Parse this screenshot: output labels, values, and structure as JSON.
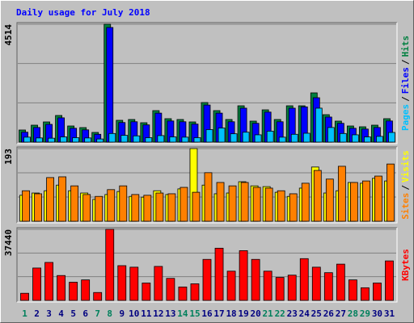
{
  "chart_data": {
    "type": "bar",
    "title": "Daily usage for July 2018",
    "categories": [
      "1",
      "2",
      "3",
      "4",
      "5",
      "6",
      "7",
      "8",
      "9",
      "10",
      "11",
      "12",
      "13",
      "14",
      "15",
      "16",
      "17",
      "18",
      "19",
      "20",
      "21",
      "22",
      "23",
      "24",
      "25",
      "26",
      "27",
      "28",
      "29",
      "30",
      "31"
    ],
    "category_colors": [
      "#00805c",
      "#000080",
      "#000080",
      "#000080",
      "#000080",
      "#000080",
      "#00805c",
      "#00805c",
      "#000080",
      "#000080",
      "#000080",
      "#000080",
      "#000080",
      "#00805c",
      "#00805c",
      "#000080",
      "#000080",
      "#000080",
      "#000080",
      "#000080",
      "#00805c",
      "#00805c",
      "#000080",
      "#000080",
      "#000080",
      "#000080",
      "#000080",
      "#00805c",
      "#00805c",
      "#000080",
      "#000080"
    ],
    "legend_separator": "/",
    "panels": [
      {
        "ylim": [
          0,
          4514
        ],
        "yticks": [
          4514
        ],
        "series": [
          {
            "name": "Hits",
            "color": "#008040",
            "values": [
              464,
              649,
              773,
              1020,
              618,
              556,
              371,
              4514,
              835,
              866,
              742,
              1206,
              897,
              866,
              773,
              1515,
              1206,
              866,
              1391,
              804,
              1236,
              866,
              1391,
              1391,
              1886,
              1051,
              804,
              618,
              587,
              649,
              897
            ]
          },
          {
            "name": "Files",
            "color": "#0000ff",
            "values": [
              380,
              560,
              680,
              930,
              530,
              470,
              300,
              4390,
              750,
              780,
              660,
              1110,
              810,
              780,
              690,
              1420,
              1110,
              780,
              1300,
              720,
              1150,
              780,
              1300,
              1350,
              1700,
              960,
              720,
              530,
              500,
              560,
              810
            ]
          },
          {
            "name": "Pages",
            "color": "#00c0ff",
            "values": [
              190,
              160,
              150,
              200,
              170,
              160,
              120,
              330,
              260,
              240,
              170,
              250,
              200,
              190,
              170,
              480,
              540,
              320,
              380,
              280,
              420,
              190,
              300,
              340,
              1300,
              560,
              330,
              280,
              200,
              220,
              370
            ]
          }
        ]
      },
      {
        "ylim": [
          0,
          193
        ],
        "yticks": [
          193
        ],
        "series": [
          {
            "name": "Visits",
            "color": "#ffff00",
            "values": [
              69,
              75,
              81,
              96,
              81,
              75,
              58,
              71,
              79,
              66,
              64,
              81,
              71,
              86,
              193,
              96,
              73,
              75,
              105,
              94,
              92,
              77,
              66,
              88,
              144,
              75,
              81,
              103,
              101,
              114,
              107
            ]
          },
          {
            "name": "Sites",
            "color": "#ff8000",
            "values": [
              81,
              73,
              116,
              118,
              94,
              71,
              66,
              84,
              94,
              71,
              69,
              75,
              73,
              90,
              77,
              129,
              103,
              94,
              103,
              90,
              88,
              81,
              73,
              101,
              135,
              112,
              146,
              103,
              107,
              120,
              152
            ]
          }
        ]
      },
      {
        "ylim": [
          0,
          37440
        ],
        "yticks": [
          37440
        ],
        "series": [
          {
            "name": "KBytes",
            "color": "#ff0000",
            "values": [
              3744,
              17056,
              20000,
              13100,
              9570,
              10800,
              4160,
              37440,
              18300,
              17500,
              9150,
              17900,
              11600,
              7070,
              8740,
              21600,
              27500,
              15400,
              26200,
              21600,
              15400,
              12100,
              13300,
              22000,
              17500,
              14600,
              19100,
              10800,
              6660,
              9150,
              20800
            ]
          }
        ]
      }
    ]
  }
}
